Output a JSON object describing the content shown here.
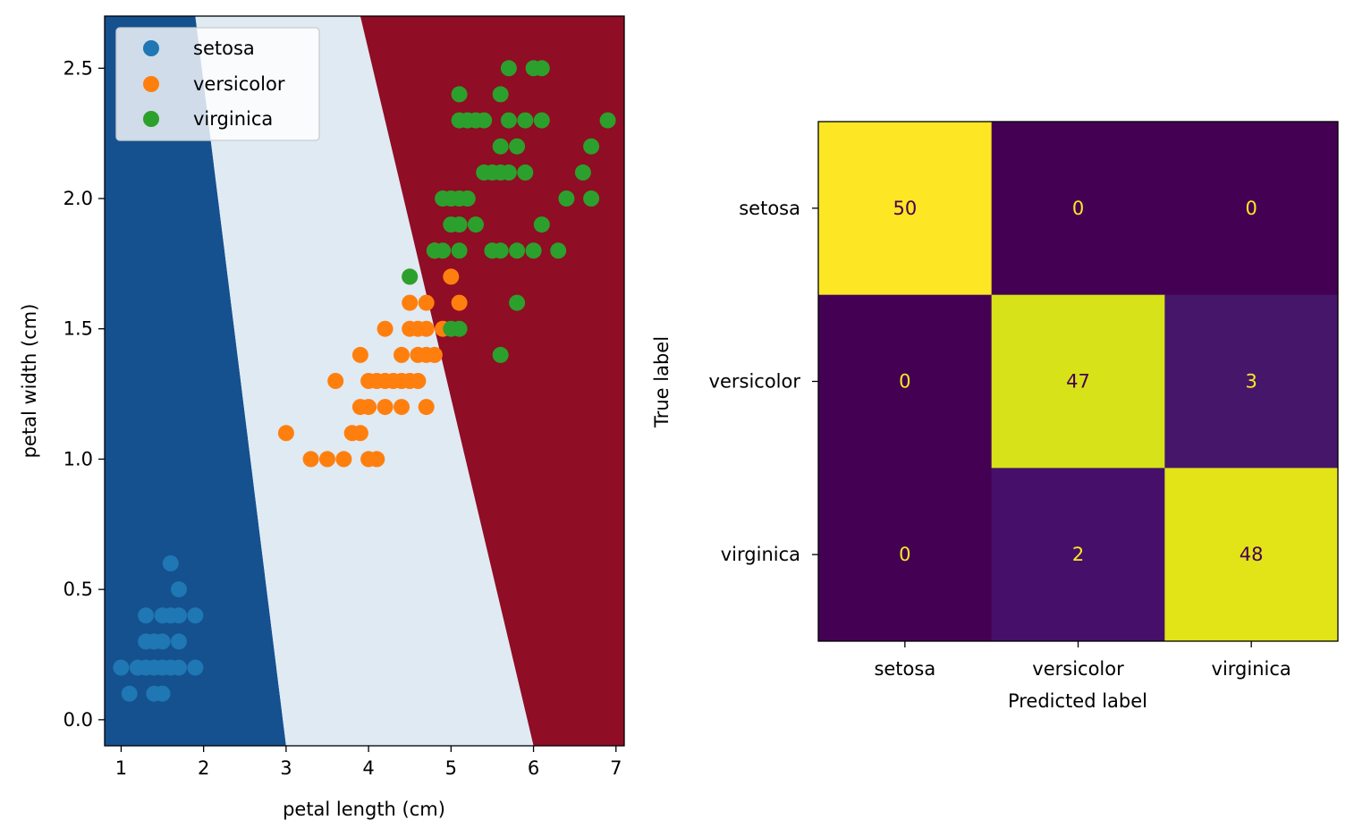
{
  "chart_data": [
    {
      "type": "scatter",
      "title": "",
      "xlabel": "petal length (cm)",
      "ylabel": "petal width (cm)",
      "xlim": [
        0.8,
        7.1
      ],
      "ylim": [
        -0.1,
        2.7
      ],
      "x_ticks": [
        "1",
        "2",
        "3",
        "4",
        "5",
        "6",
        "7"
      ],
      "y_ticks": [
        "0.0",
        "0.5",
        "1.0",
        "1.5",
        "2.0",
        "2.5"
      ],
      "legend_position": "upper-left",
      "decision_regions": {
        "colors": [
          "#15508f",
          "#dfeaf3",
          "#8f0d25"
        ],
        "boundary_setosa_versicolor": {
          "at_y_bottom": [
            -0.1,
            3.0
          ],
          "at_y_top": [
            2.7,
            1.9
          ]
        },
        "boundary_versicolor_virginica": {
          "at_y_bottom": [
            -0.1,
            6.0
          ],
          "at_y_top": [
            2.7,
            3.9
          ]
        }
      },
      "series": [
        {
          "name": "setosa",
          "color": "#1f77b4",
          "points": [
            [
              1.0,
              0.2
            ],
            [
              1.1,
              0.1
            ],
            [
              1.2,
              0.2
            ],
            [
              1.3,
              0.2
            ],
            [
              1.3,
              0.3
            ],
            [
              1.3,
              0.4
            ],
            [
              1.4,
              0.1
            ],
            [
              1.4,
              0.2
            ],
            [
              1.4,
              0.3
            ],
            [
              1.5,
              0.1
            ],
            [
              1.5,
              0.2
            ],
            [
              1.5,
              0.3
            ],
            [
              1.5,
              0.4
            ],
            [
              1.6,
              0.2
            ],
            [
              1.6,
              0.4
            ],
            [
              1.6,
              0.6
            ],
            [
              1.7,
              0.2
            ],
            [
              1.7,
              0.3
            ],
            [
              1.7,
              0.4
            ],
            [
              1.7,
              0.5
            ],
            [
              1.9,
              0.2
            ],
            [
              1.9,
              0.4
            ]
          ]
        },
        {
          "name": "versicolor",
          "color": "#ff7f0e",
          "points": [
            [
              3.0,
              1.1
            ],
            [
              3.3,
              1.0
            ],
            [
              3.5,
              1.0
            ],
            [
              3.6,
              1.3
            ],
            [
              3.7,
              1.0
            ],
            [
              3.8,
              1.1
            ],
            [
              3.9,
              1.1
            ],
            [
              3.9,
              1.2
            ],
            [
              3.9,
              1.4
            ],
            [
              4.0,
              1.0
            ],
            [
              4.0,
              1.2
            ],
            [
              4.0,
              1.3
            ],
            [
              4.1,
              1.0
            ],
            [
              4.1,
              1.3
            ],
            [
              4.2,
              1.2
            ],
            [
              4.2,
              1.3
            ],
            [
              4.2,
              1.5
            ],
            [
              4.3,
              1.3
            ],
            [
              4.4,
              1.2
            ],
            [
              4.4,
              1.3
            ],
            [
              4.4,
              1.4
            ],
            [
              4.5,
              1.3
            ],
            [
              4.5,
              1.5
            ],
            [
              4.5,
              1.6
            ],
            [
              4.5,
              1.7
            ],
            [
              4.6,
              1.3
            ],
            [
              4.6,
              1.4
            ],
            [
              4.6,
              1.5
            ],
            [
              4.7,
              1.2
            ],
            [
              4.7,
              1.4
            ],
            [
              4.7,
              1.5
            ],
            [
              4.7,
              1.6
            ],
            [
              4.8,
              1.4
            ],
            [
              4.8,
              1.8
            ],
            [
              4.9,
              1.5
            ],
            [
              5.0,
              1.7
            ],
            [
              5.1,
              1.6
            ]
          ]
        },
        {
          "name": "virginica",
          "color": "#2ca02c",
          "points": [
            [
              4.5,
              1.7
            ],
            [
              4.8,
              1.8
            ],
            [
              4.9,
              1.8
            ],
            [
              4.9,
              2.0
            ],
            [
              5.0,
              1.5
            ],
            [
              5.0,
              1.9
            ],
            [
              5.0,
              2.0
            ],
            [
              5.1,
              1.5
            ],
            [
              5.1,
              1.8
            ],
            [
              5.1,
              1.9
            ],
            [
              5.1,
              2.0
            ],
            [
              5.1,
              2.3
            ],
            [
              5.1,
              2.4
            ],
            [
              5.2,
              2.0
            ],
            [
              5.2,
              2.3
            ],
            [
              5.3,
              1.9
            ],
            [
              5.3,
              2.3
            ],
            [
              5.4,
              2.1
            ],
            [
              5.4,
              2.3
            ],
            [
              5.5,
              1.8
            ],
            [
              5.5,
              2.1
            ],
            [
              5.6,
              1.4
            ],
            [
              5.6,
              1.8
            ],
            [
              5.6,
              2.1
            ],
            [
              5.6,
              2.2
            ],
            [
              5.6,
              2.4
            ],
            [
              5.7,
              2.1
            ],
            [
              5.7,
              2.3
            ],
            [
              5.7,
              2.5
            ],
            [
              5.8,
              1.6
            ],
            [
              5.8,
              1.8
            ],
            [
              5.8,
              2.2
            ],
            [
              5.9,
              2.1
            ],
            [
              5.9,
              2.3
            ],
            [
              6.0,
              1.8
            ],
            [
              6.0,
              2.5
            ],
            [
              6.1,
              1.9
            ],
            [
              6.1,
              2.3
            ],
            [
              6.1,
              2.5
            ],
            [
              6.3,
              1.8
            ],
            [
              6.4,
              2.0
            ],
            [
              6.6,
              2.1
            ],
            [
              6.7,
              2.0
            ],
            [
              6.7,
              2.2
            ],
            [
              6.9,
              2.3
            ]
          ]
        }
      ]
    },
    {
      "type": "heatmap",
      "title": "",
      "xlabel": "Predicted label",
      "ylabel": "True label",
      "labels": [
        "setosa",
        "versicolor",
        "virginica"
      ],
      "matrix": [
        [
          50,
          0,
          0
        ],
        [
          0,
          47,
          3
        ],
        [
          0,
          2,
          48
        ]
      ],
      "cell_colors": [
        [
          "#fde725",
          "#440154",
          "#440154"
        ],
        [
          "#440154",
          "#d8e219",
          "#46166a"
        ],
        [
          "#440154",
          "#46106a",
          "#e2e418"
        ]
      ],
      "text_colors": [
        [
          "#440154",
          "#fde725",
          "#fde725"
        ],
        [
          "#fde725",
          "#440154",
          "#fde725"
        ],
        [
          "#fde725",
          "#fde725",
          "#440154"
        ]
      ],
      "colorbar": false
    }
  ]
}
